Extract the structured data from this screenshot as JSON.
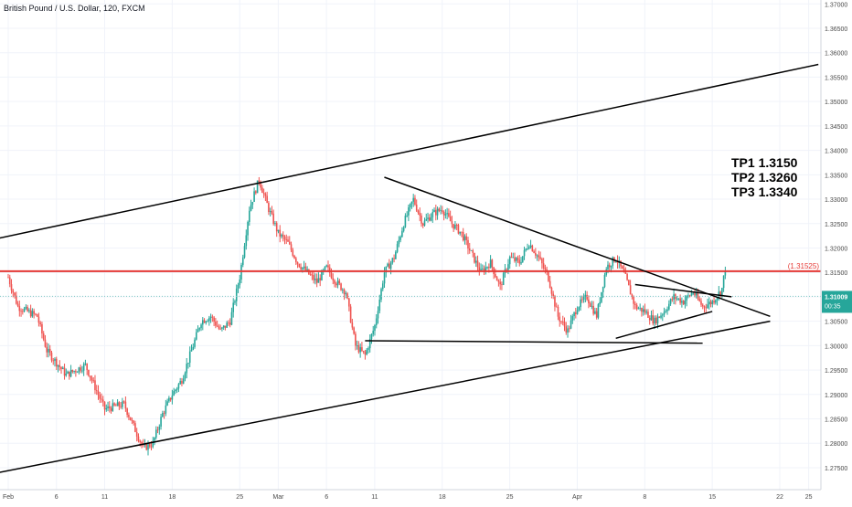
{
  "header": {
    "symbol_title": "British Pound / U.S. Dollar, 120, FXCM"
  },
  "colors": {
    "up": "#26a69a",
    "down": "#ef5350",
    "resistance": "#e53935",
    "current_price_line": "#80cbc4",
    "price_badge": "#26a69a",
    "trendline": "#000000",
    "axis_text": "#4a4a4a",
    "grid": "#f0f3fa"
  },
  "chart_data": {
    "type": "candlestick",
    "title": "British Pound / U.S. Dollar, 120, FXCM",
    "xlabel": "",
    "ylabel": "",
    "ylim": [
      1.2705,
      1.3708
    ],
    "yticks": [
      "1.27500",
      "1.28000",
      "1.28500",
      "1.29000",
      "1.29500",
      "1.30000",
      "1.30500",
      "1.31000",
      "1.31500",
      "1.32000",
      "1.32500",
      "1.33000",
      "1.33500",
      "1.34000",
      "1.34500",
      "1.35000",
      "1.35500",
      "1.36000",
      "1.36500",
      "1.37000"
    ],
    "xticks": [
      {
        "label": "Feb",
        "day": 0
      },
      {
        "label": "6",
        "day": 5
      },
      {
        "label": "11",
        "day": 10
      },
      {
        "label": "18",
        "day": 17
      },
      {
        "label": "25",
        "day": 24
      },
      {
        "label": "Mar",
        "day": 28
      },
      {
        "label": "6",
        "day": 33
      },
      {
        "label": "11",
        "day": 38
      },
      {
        "label": "18",
        "day": 45
      },
      {
        "label": "25",
        "day": 52
      },
      {
        "label": "Apr",
        "day": 59
      },
      {
        "label": "8",
        "day": 66
      },
      {
        "label": "15",
        "day": 73
      },
      {
        "label": "22",
        "day": 80
      },
      {
        "label": "25",
        "day": 83
      }
    ],
    "price_path": [
      [
        0,
        1.314
      ],
      [
        1,
        1.308
      ],
      [
        3,
        1.306
      ],
      [
        4,
        1.299
      ],
      [
        6,
        1.294
      ],
      [
        8,
        1.296
      ],
      [
        10,
        1.287
      ],
      [
        12,
        1.288
      ],
      [
        14,
        1.279
      ],
      [
        15,
        1.28
      ],
      [
        16,
        1.286
      ],
      [
        17,
        1.29
      ],
      [
        18,
        1.293
      ],
      [
        20,
        1.305
      ],
      [
        21,
        1.306
      ],
      [
        22,
        1.303
      ],
      [
        23,
        1.305
      ],
      [
        24,
        1.314
      ],
      [
        25,
        1.328
      ],
      [
        26,
        1.334
      ],
      [
        27,
        1.328
      ],
      [
        28,
        1.323
      ],
      [
        29,
        1.321
      ],
      [
        30,
        1.317
      ],
      [
        31,
        1.315
      ],
      [
        32,
        1.313
      ],
      [
        33,
        1.316
      ],
      [
        34,
        1.313
      ],
      [
        35,
        1.311
      ],
      [
        36,
        1.3
      ],
      [
        37,
        1.298
      ],
      [
        38,
        1.304
      ],
      [
        39,
        1.315
      ],
      [
        40,
        1.318
      ],
      [
        41,
        1.325
      ],
      [
        42,
        1.33
      ],
      [
        43,
        1.325
      ],
      [
        44,
        1.327
      ],
      [
        45,
        1.328
      ],
      [
        46,
        1.325
      ],
      [
        47,
        1.323
      ],
      [
        48,
        1.319
      ],
      [
        49,
        1.315
      ],
      [
        50,
        1.317
      ],
      [
        51,
        1.312
      ],
      [
        52,
        1.318
      ],
      [
        53,
        1.317
      ],
      [
        54,
        1.321
      ],
      [
        55,
        1.318
      ],
      [
        56,
        1.314
      ],
      [
        57,
        1.306
      ],
      [
        58,
        1.303
      ],
      [
        59,
        1.308
      ],
      [
        60,
        1.31
      ],
      [
        61,
        1.306
      ],
      [
        62,
        1.316
      ],
      [
        63,
        1.318
      ],
      [
        64,
        1.314
      ],
      [
        65,
        1.308
      ],
      [
        66,
        1.307
      ],
      [
        67,
        1.305
      ],
      [
        68,
        1.307
      ],
      [
        69,
        1.31
      ],
      [
        70,
        1.309
      ],
      [
        71,
        1.311
      ],
      [
        72,
        1.308
      ],
      [
        73,
        1.309
      ],
      [
        74,
        1.3115
      ],
      [
        74.5,
        1.318
      ]
    ],
    "last_close": 1.31009,
    "price_badge": {
      "value": "1.31009",
      "countdown": "00:35"
    },
    "annotations": {
      "resistance_level": {
        "value": 1.31525,
        "label": "(1.31525)"
      },
      "targets": [
        "TP1 1.3150",
        "TP2 1.3260",
        "TP3 1.3340"
      ]
    },
    "trendlines": [
      {
        "name": "channel-upper",
        "from": [
          -1,
          1.322
        ],
        "to": [
          84,
          1.3576
        ]
      },
      {
        "name": "channel-lower",
        "from": [
          -1,
          1.274
        ],
        "to": [
          79,
          1.305
        ]
      },
      {
        "name": "triangle-upper",
        "from": [
          39,
          1.3345
        ],
        "to": [
          79,
          1.306
        ]
      },
      {
        "name": "triangle-base",
        "from": [
          37,
          1.301
        ],
        "to": [
          72,
          1.3005
        ]
      },
      {
        "name": "wedge-upper",
        "from": [
          65,
          1.3125
        ],
        "to": [
          75,
          1.31
        ]
      },
      {
        "name": "wedge-lower",
        "from": [
          63,
          1.3015
        ],
        "to": [
          73,
          1.307
        ]
      }
    ]
  }
}
